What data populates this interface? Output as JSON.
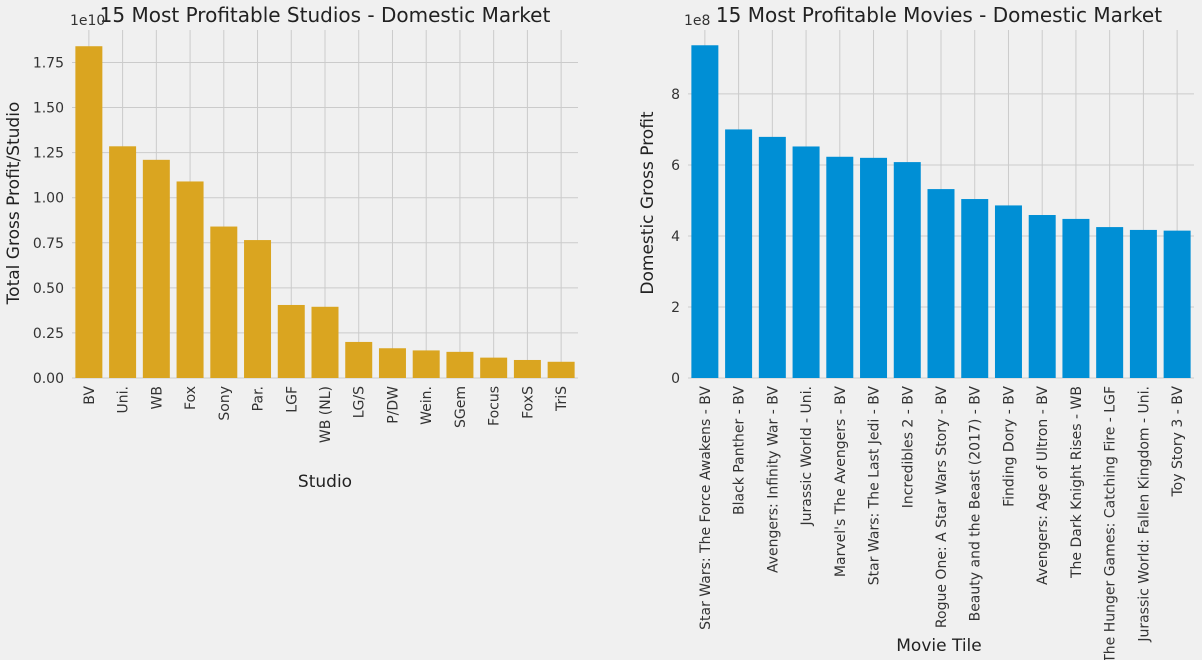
{
  "chart_data": [
    {
      "type": "bar",
      "title": "15 Most Profitable Studios - Domestic Market",
      "xlabel": "Studio",
      "ylabel": "Total Gross Profit/Studio",
      "offset_label": "1e10",
      "ylim": [
        0,
        1.93
      ],
      "yticks": [
        0.0,
        0.25,
        0.5,
        0.75,
        1.0,
        1.25,
        1.5,
        1.75
      ],
      "ytick_labels": [
        "0.00",
        "0.25",
        "0.50",
        "0.75",
        "1.00",
        "1.25",
        "1.50",
        "1.75"
      ],
      "categories": [
        "BV",
        "Uni.",
        "WB",
        "Fox",
        "Sony",
        "Par.",
        "LGF",
        "WB (NL)",
        "LG/S",
        "P/DW",
        "Wein.",
        "SGem",
        "Focus",
        "FoxS",
        "TriS"
      ],
      "values": [
        1.84,
        1.285,
        1.21,
        1.09,
        0.84,
        0.765,
        0.405,
        0.395,
        0.2,
        0.165,
        0.153,
        0.145,
        0.113,
        0.1,
        0.09
      ],
      "grid": true,
      "color": "#daa520"
    },
    {
      "type": "bar",
      "title": "15 Most Profitable Movies - Domestic Market",
      "xlabel": "Movie Tile",
      "ylabel": "Domestic Gross Profit",
      "offset_label": "1e8",
      "ylim": [
        0,
        9.8
      ],
      "yticks": [
        0,
        2,
        4,
        6,
        8
      ],
      "ytick_labels": [
        "0",
        "2",
        "4",
        "6",
        "8"
      ],
      "categories": [
        "Star Wars: The Force Awakens - BV",
        "Black Panther - BV",
        "Avengers: Infinity War - BV",
        "Jurassic World - Uni.",
        "Marvel's The Avengers - BV",
        "Star Wars: The Last Jedi - BV",
        "Incredibles 2 - BV",
        "Rogue One: A Star Wars Story - BV",
        "Beauty and the Beast (2017) - BV",
        "Finding Dory - BV",
        "Avengers: Age of Ultron - BV",
        "The Dark Knight Rises - WB",
        "The Hunger Games: Catching Fire - LGF",
        "Jurassic World: Fallen Kingdom - Uni.",
        "Toy Story 3 - BV"
      ],
      "values": [
        9.37,
        7.0,
        6.79,
        6.52,
        6.23,
        6.2,
        6.08,
        5.32,
        5.04,
        4.86,
        4.59,
        4.48,
        4.25,
        4.17,
        4.15
      ],
      "grid": true,
      "color": "#008fd5"
    }
  ]
}
